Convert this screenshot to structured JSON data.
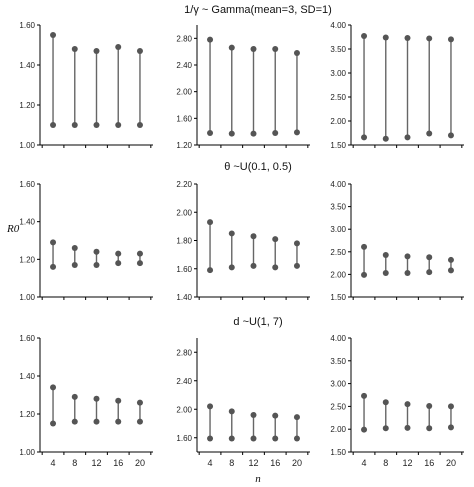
{
  "figure": {
    "ylabel": "R0",
    "xlabel": "n"
  },
  "rows": [
    {
      "title": "1/γ ~ Gamma(mean=3, SD=1)"
    },
    {
      "title": "θ ~U(0.1, 0.5)"
    },
    {
      "title": "d ~U(1, 7)"
    }
  ],
  "colors": {
    "marker": "#555555",
    "line": "#666666",
    "axis": "#000000"
  },
  "chart_data": [
    {
      "type": "range",
      "row": 0,
      "col": 0,
      "ylim": [
        1.0,
        1.6
      ],
      "yticks": [
        "1.00",
        "1.20",
        "1.40",
        "1.60"
      ],
      "categories": [
        "4",
        "8",
        "12",
        "16",
        "20"
      ],
      "low": [
        1.1,
        1.1,
        1.1,
        1.1,
        1.1
      ],
      "high": [
        1.55,
        1.48,
        1.47,
        1.49,
        1.47
      ],
      "show_x_ticks": false
    },
    {
      "type": "range",
      "row": 0,
      "col": 1,
      "ylim": [
        1.2,
        3.0
      ],
      "yticks": [
        "1.20",
        "1.60",
        "2.00",
        "2.40",
        "2.80"
      ],
      "categories": [
        "4",
        "8",
        "12",
        "16",
        "20"
      ],
      "low": [
        1.38,
        1.37,
        1.37,
        1.38,
        1.39
      ],
      "high": [
        2.78,
        2.66,
        2.64,
        2.64,
        2.58
      ],
      "show_x_ticks": false
    },
    {
      "type": "range",
      "row": 0,
      "col": 2,
      "ylim": [
        1.5,
        4.0
      ],
      "yticks": [
        "1.50",
        "2.00",
        "2.50",
        "3.00",
        "3.50",
        "4.00"
      ],
      "categories": [
        "4",
        "8",
        "12",
        "16",
        "20"
      ],
      "low": [
        1.66,
        1.63,
        1.66,
        1.74,
        1.7
      ],
      "high": [
        3.77,
        3.74,
        3.73,
        3.72,
        3.7
      ],
      "show_x_ticks": false
    },
    {
      "type": "range",
      "row": 1,
      "col": 0,
      "ylim": [
        1.0,
        1.6
      ],
      "yticks": [
        "1.00",
        "1.20",
        "1.40",
        "1.60"
      ],
      "categories": [
        "4",
        "8",
        "12",
        "16",
        "20"
      ],
      "low": [
        1.16,
        1.17,
        1.17,
        1.18,
        1.18
      ],
      "high": [
        1.29,
        1.26,
        1.24,
        1.23,
        1.23
      ],
      "show_x_ticks": false
    },
    {
      "type": "range",
      "row": 1,
      "col": 1,
      "ylim": [
        1.4,
        2.2
      ],
      "yticks": [
        "1.40",
        "1.60",
        "1.80",
        "2.00",
        "2.20"
      ],
      "categories": [
        "4",
        "8",
        "12",
        "16",
        "20"
      ],
      "low": [
        1.59,
        1.61,
        1.62,
        1.61,
        1.62
      ],
      "high": [
        1.93,
        1.85,
        1.83,
        1.81,
        1.78
      ],
      "show_x_ticks": false
    },
    {
      "type": "range",
      "row": 1,
      "col": 2,
      "ylim": [
        1.5,
        4.0
      ],
      "yticks": [
        "1.50",
        "2.00",
        "2.50",
        "3.00",
        "3.50",
        "4.00"
      ],
      "categories": [
        "4",
        "8",
        "12",
        "16",
        "20"
      ],
      "low": [
        1.99,
        2.03,
        2.03,
        2.05,
        2.09
      ],
      "high": [
        2.61,
        2.43,
        2.4,
        2.38,
        2.32
      ],
      "show_x_ticks": false
    },
    {
      "type": "range",
      "row": 2,
      "col": 0,
      "ylim": [
        1.0,
        1.6
      ],
      "yticks": [
        "1.00",
        "1.20",
        "1.40",
        "1.60"
      ],
      "categories": [
        "4",
        "8",
        "12",
        "16",
        "20"
      ],
      "low": [
        1.15,
        1.16,
        1.16,
        1.16,
        1.16
      ],
      "high": [
        1.34,
        1.29,
        1.28,
        1.27,
        1.26
      ],
      "show_x_ticks": true
    },
    {
      "type": "range",
      "row": 2,
      "col": 1,
      "ylim": [
        1.4,
        3.0
      ],
      "yticks": [
        "1.60",
        "2.00",
        "2.40",
        "2.80"
      ],
      "categories": [
        "4",
        "8",
        "12",
        "16",
        "20"
      ],
      "low": [
        1.59,
        1.59,
        1.59,
        1.59,
        1.59
      ],
      "high": [
        2.04,
        1.97,
        1.92,
        1.91,
        1.89
      ],
      "show_x_ticks": true
    },
    {
      "type": "range",
      "row": 2,
      "col": 2,
      "ylim": [
        1.5,
        4.0
      ],
      "yticks": [
        "1.50",
        "2.00",
        "2.50",
        "3.00",
        "3.50",
        "4.00"
      ],
      "categories": [
        "4",
        "8",
        "12",
        "16",
        "20"
      ],
      "low": [
        1.99,
        2.02,
        2.03,
        2.02,
        2.04
      ],
      "high": [
        2.73,
        2.59,
        2.55,
        2.51,
        2.5
      ],
      "show_x_ticks": true
    }
  ]
}
